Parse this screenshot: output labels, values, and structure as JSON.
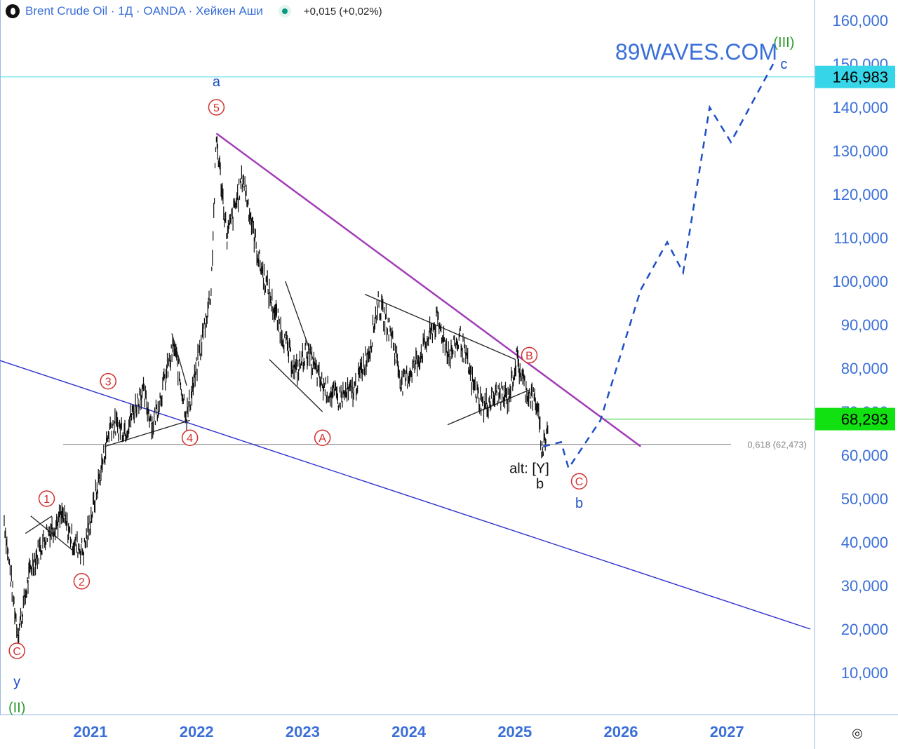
{
  "header": {
    "symbol": "Brent Crude Oil · 1Д · OANDA · Хейкен Аши",
    "change": "+0,015 (+0,02%)",
    "logo_icon": "oil-drop-icon",
    "live_icon": "live-dot-icon"
  },
  "watermark": "89WAVES.COM",
  "colors": {
    "price_axis_text": "#3a6fd8",
    "time_axis_text": "#3a6fd8",
    "wave_red": "#d32f2f",
    "wave_blue": "#1e4fc4",
    "wave_green": "#2e9a2e",
    "trend_purple": "#a23cb8",
    "channel_blue": "#3030d0",
    "target_line": "#36d6e8",
    "current_line": "#22cc22"
  },
  "chart_data": {
    "type": "line",
    "title": "Brent Crude Oil",
    "timeframe": "1Д",
    "y_ticks": [
      "10,000",
      "20,000",
      "30,000",
      "40,000",
      "50,000",
      "60,000",
      "70,000",
      "80,000",
      "90,000",
      "100,000",
      "110,000",
      "120,000",
      "130,000",
      "140,000",
      "150,000",
      "160,000"
    ],
    "x_ticks": [
      "2021",
      "2022",
      "2023",
      "2024",
      "2025",
      "2026",
      "2027"
    ],
    "ylim": [
      0,
      165
    ],
    "price_labels": {
      "target": "146,983",
      "current": "68,293",
      "fib": "0,618 (62,473)"
    },
    "price_levels": {
      "target": 146.983,
      "current": 68.293,
      "fib": 62.473
    },
    "price_series": [
      {
        "x": 2020.2,
        "y": 45
      },
      {
        "x": 2020.28,
        "y": 28
      },
      {
        "x": 2020.33,
        "y": 19
      },
      {
        "x": 2020.45,
        "y": 34
      },
      {
        "x": 2020.6,
        "y": 42
      },
      {
        "x": 2020.75,
        "y": 46
      },
      {
        "x": 2020.85,
        "y": 40
      },
      {
        "x": 2020.95,
        "y": 38
      },
      {
        "x": 2021.1,
        "y": 55
      },
      {
        "x": 2021.2,
        "y": 67
      },
      {
        "x": 2021.35,
        "y": 66
      },
      {
        "x": 2021.5,
        "y": 75
      },
      {
        "x": 2021.6,
        "y": 67
      },
      {
        "x": 2021.8,
        "y": 85
      },
      {
        "x": 2021.92,
        "y": 69
      },
      {
        "x": 2022.0,
        "y": 78
      },
      {
        "x": 2022.15,
        "y": 98
      },
      {
        "x": 2022.2,
        "y": 133
      },
      {
        "x": 2022.3,
        "y": 110
      },
      {
        "x": 2022.45,
        "y": 124
      },
      {
        "x": 2022.6,
        "y": 105
      },
      {
        "x": 2022.75,
        "y": 93
      },
      {
        "x": 2022.85,
        "y": 86
      },
      {
        "x": 2022.95,
        "y": 79
      },
      {
        "x": 2023.05,
        "y": 84
      },
      {
        "x": 2023.2,
        "y": 76
      },
      {
        "x": 2023.35,
        "y": 73
      },
      {
        "x": 2023.5,
        "y": 75
      },
      {
        "x": 2023.65,
        "y": 85
      },
      {
        "x": 2023.72,
        "y": 95
      },
      {
        "x": 2023.85,
        "y": 88
      },
      {
        "x": 2023.95,
        "y": 76
      },
      {
        "x": 2024.1,
        "y": 82
      },
      {
        "x": 2024.28,
        "y": 91
      },
      {
        "x": 2024.4,
        "y": 83
      },
      {
        "x": 2024.5,
        "y": 87
      },
      {
        "x": 2024.62,
        "y": 76
      },
      {
        "x": 2024.72,
        "y": 71
      },
      {
        "x": 2024.85,
        "y": 74
      },
      {
        "x": 2024.95,
        "y": 73
      },
      {
        "x": 2025.03,
        "y": 82
      },
      {
        "x": 2025.12,
        "y": 75
      },
      {
        "x": 2025.22,
        "y": 72
      },
      {
        "x": 2025.27,
        "y": 61
      },
      {
        "x": 2025.33,
        "y": 67
      }
    ],
    "projection": [
      {
        "x": 2025.28,
        "y": 62
      },
      {
        "x": 2025.45,
        "y": 63
      },
      {
        "x": 2025.52,
        "y": 57
      },
      {
        "x": 2025.82,
        "y": 68
      },
      {
        "x": 2026.2,
        "y": 98
      },
      {
        "x": 2026.45,
        "y": 109
      },
      {
        "x": 2026.6,
        "y": 102
      },
      {
        "x": 2026.85,
        "y": 140
      },
      {
        "x": 2027.05,
        "y": 132
      },
      {
        "x": 2027.45,
        "y": 150
      }
    ],
    "trendlines": [
      {
        "name": "resistance",
        "color": "purple",
        "from": {
          "x": 2022.2,
          "y": 134
        },
        "to": {
          "x": 2026.2,
          "y": 62
        }
      },
      {
        "name": "channel",
        "color": "blue",
        "from": {
          "x": 2020.13,
          "y": 82
        },
        "to": {
          "x": 2027.8,
          "y": 20
        }
      },
      {
        "name": "wedge-1-upper",
        "color": "black",
        "from": {
          "x": 2020.45,
          "y": 46
        },
        "to": {
          "x": 2020.85,
          "y": 38
        }
      },
      {
        "name": "wedge-1-lower",
        "color": "black",
        "from": {
          "x": 2020.4,
          "y": 42
        },
        "to": {
          "x": 2020.65,
          "y": 46
        }
      },
      {
        "name": "wedge-2-lower",
        "color": "black",
        "from": {
          "x": 2021.15,
          "y": 62
        },
        "to": {
          "x": 2021.95,
          "y": 68
        }
      },
      {
        "name": "wedge-2-upper",
        "color": "black",
        "from": {
          "x": 2021.78,
          "y": 88
        },
        "to": {
          "x": 2021.92,
          "y": 76
        }
      },
      {
        "name": "wedge-3-upper",
        "color": "black",
        "from": {
          "x": 2022.85,
          "y": 100
        },
        "to": {
          "x": 2023.2,
          "y": 76
        }
      },
      {
        "name": "wedge-3-lower",
        "color": "black",
        "from": {
          "x": 2022.7,
          "y": 82
        },
        "to": {
          "x": 2023.2,
          "y": 70
        }
      },
      {
        "name": "triangle-upper",
        "color": "black",
        "from": {
          "x": 2023.6,
          "y": 97
        },
        "to": {
          "x": 2025.02,
          "y": 82
        }
      },
      {
        "name": "triangle-lower",
        "color": "black",
        "from": {
          "x": 2024.38,
          "y": 67
        },
        "to": {
          "x": 2025.15,
          "y": 75
        }
      }
    ],
    "labels": [
      {
        "text": "C",
        "kind": "circle-red",
        "x": 2020.32,
        "y": 15
      },
      {
        "text": "y",
        "kind": "blue",
        "x": 2020.32,
        "y": 8
      },
      {
        "text": "(II)",
        "kind": "green",
        "x": 2020.32,
        "y": 2
      },
      {
        "text": "1",
        "kind": "circle-red",
        "x": 2020.6,
        "y": 50
      },
      {
        "text": "2",
        "kind": "circle-red",
        "x": 2020.93,
        "y": 31
      },
      {
        "text": "3",
        "kind": "circle-red",
        "x": 2021.18,
        "y": 77
      },
      {
        "text": "4",
        "kind": "circle-red",
        "x": 2021.95,
        "y": 64
      },
      {
        "text": "5",
        "kind": "circle-red",
        "x": 2022.2,
        "y": 140
      },
      {
        "text": "a",
        "kind": "blue",
        "x": 2022.2,
        "y": 146
      },
      {
        "text": "A",
        "kind": "circle-red",
        "x": 2023.2,
        "y": 64
      },
      {
        "text": "B",
        "kind": "circle-red",
        "x": 2025.15,
        "y": 83
      },
      {
        "text": "alt: [Y]",
        "kind": "black",
        "x": 2025.15,
        "y": 57
      },
      {
        "text": "b",
        "kind": "black",
        "x": 2025.25,
        "y": 53.5
      },
      {
        "text": "C",
        "kind": "circle-red",
        "x": 2025.62,
        "y": 54
      },
      {
        "text": "b",
        "kind": "blue",
        "x": 2025.62,
        "y": 49
      },
      {
        "text": "(III)",
        "kind": "green",
        "x": 2027.55,
        "y": 155
      },
      {
        "text": "c",
        "kind": "blue",
        "x": 2027.55,
        "y": 150
      }
    ]
  }
}
